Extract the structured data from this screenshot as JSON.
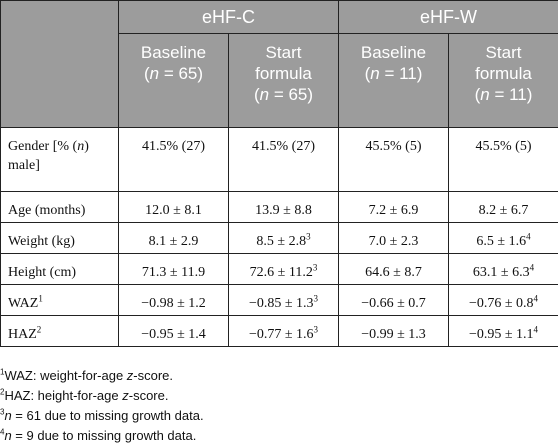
{
  "header": {
    "groups": [
      "eHF-C",
      "eHF-W"
    ],
    "subs": [
      {
        "l1": "Baseline",
        "l2": "(",
        "n": "n",
        "l3": " = 65)"
      },
      {
        "l1": "Start",
        "l2": "formula",
        "l3open": "(",
        "n": "n",
        "l3": " = 65)"
      },
      {
        "l1": "Baseline",
        "l2": "(",
        "n": "n",
        "l3": " = 11)"
      },
      {
        "l1": "Start",
        "l2": "formula",
        "l3open": "(",
        "n": "n",
        "l3": " = 11)"
      }
    ]
  },
  "rows": [
    {
      "label_a": "Gender [% (",
      "label_n": "n",
      "label_b": ")",
      "label_c": "male]",
      "cells": [
        "41.5% (27)",
        "41.5% (27)",
        "45.5% (5)",
        "45.5% (5)"
      ]
    },
    {
      "label": "Age (months)",
      "cells": [
        "12.0 ± 8.1",
        "13.9 ± 8.8",
        "7.2 ± 6.9",
        "8.2 ± 6.7"
      ]
    },
    {
      "label": "Weight (kg)",
      "cells": [
        "8.1 ± 2.9",
        "8.5 ± 2.8",
        "7.0 ± 2.3",
        "6.5 ± 1.6"
      ],
      "sups": [
        "",
        "3",
        "",
        "4"
      ]
    },
    {
      "label": "Height (cm)",
      "cells": [
        "71.3 ± 11.9",
        "72.6 ± 11.2",
        "64.6 ± 8.7",
        "63.1 ± 6.3"
      ],
      "sups": [
        "",
        "3",
        "",
        "4"
      ]
    },
    {
      "label": "WAZ",
      "label_sup": "1",
      "cells": [
        "−0.98 ± 1.2",
        "−0.85 ± 1.3",
        "−0.66 ± 0.7",
        "−0.76 ± 0.8"
      ],
      "sups": [
        "",
        "3",
        "",
        "4"
      ]
    },
    {
      "label": "HAZ",
      "label_sup": "2",
      "cells": [
        "−0.95 ± 1.4",
        "−0.77 ± 1.6",
        "−0.99 ± 1.3",
        "−0.95 ± 1.1"
      ],
      "sups": [
        "",
        "3",
        "",
        "4"
      ]
    }
  ],
  "footnotes": [
    {
      "mark": "1",
      "pre": "WAZ: weight-for-age ",
      "it": "z",
      "post": "-score."
    },
    {
      "mark": "2",
      "pre": "HAZ: height-for-age ",
      "it": "z",
      "post": "-score."
    },
    {
      "mark": "3",
      "pre": "",
      "it": "n",
      "post": " = 61 due to missing growth data."
    },
    {
      "mark": "4",
      "pre": "",
      "it": "n",
      "post": " = 9 due to missing growth data."
    }
  ]
}
